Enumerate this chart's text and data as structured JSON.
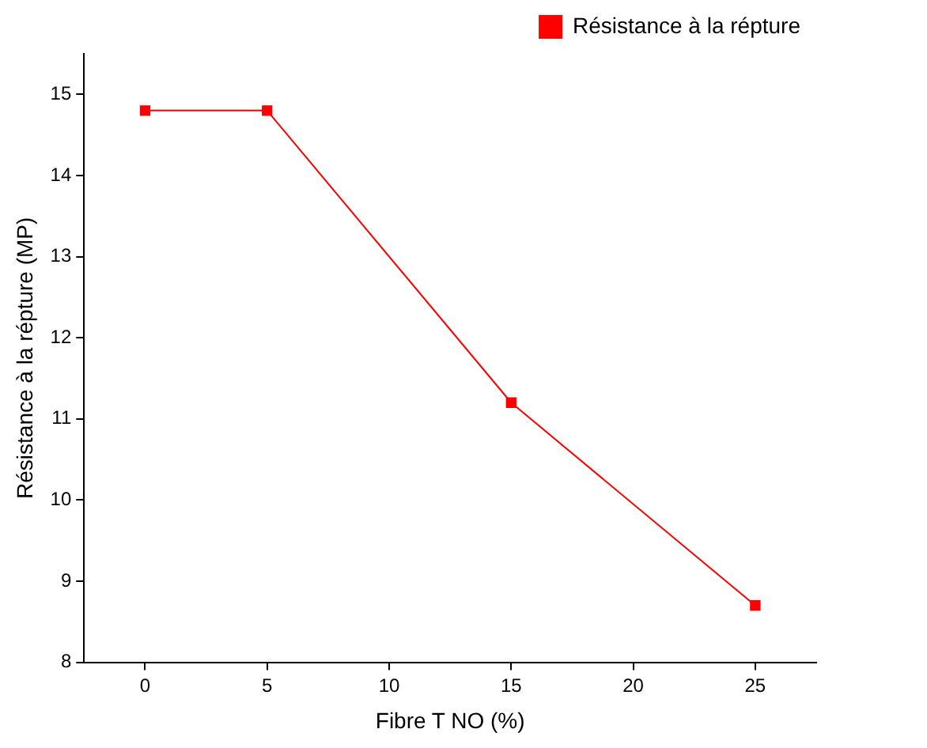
{
  "chart_data": {
    "type": "line",
    "xlabel": "Fibre T NO (%)",
    "ylabel": "Résistance à la répture (MP)",
    "x": [
      0,
      5,
      15,
      25
    ],
    "series": [
      {
        "name": "Résistance à la répture",
        "color": "#ff0000",
        "values": [
          14.8,
          14.8,
          11.2,
          8.7
        ]
      }
    ],
    "xlim": [
      -2.5,
      27.5
    ],
    "xticks": [
      0,
      5,
      10,
      15,
      20,
      25
    ],
    "ylim": [
      8,
      15.5
    ],
    "yticks": [
      8,
      9,
      10,
      11,
      12,
      13,
      14,
      15
    ],
    "grid": false,
    "legend": "top right",
    "marker": "square",
    "line_style": "solid"
  }
}
